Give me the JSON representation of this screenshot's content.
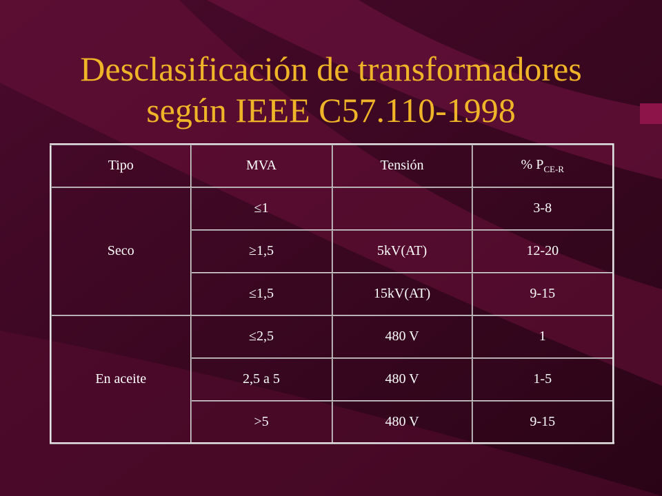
{
  "title": {
    "lines": [
      "Desclasificación de transformadores",
      "según IEEE C57.110-1998"
    ]
  },
  "table": {
    "header": [
      "Tipo",
      "MVA",
      "Tensión",
      {
        "text": "% P",
        "sub": "CE-R"
      }
    ],
    "groups": [
      {
        "tipo": "Seco",
        "rows": [
          {
            "mva": "≤1",
            "pce": "3-8"
          },
          {
            "mva": "≥1,5",
            "tension": "5kV(AT)",
            "pce": "12-20"
          },
          {
            "mva": "≤1,5",
            "tension": "15kV(AT)",
            "pce": "9-15"
          }
        ]
      },
      {
        "tipo": "En aceite",
        "rows": [
          {
            "mva": "≤2,5",
            "tension": "480 V",
            "pce": "1"
          },
          {
            "mva": "2,5 a 5",
            "tension": "480 V",
            "pce": "1-5"
          },
          {
            "mva": ">5",
            "tension": "480 V",
            "pce": "9-15"
          }
        ]
      }
    ]
  }
}
